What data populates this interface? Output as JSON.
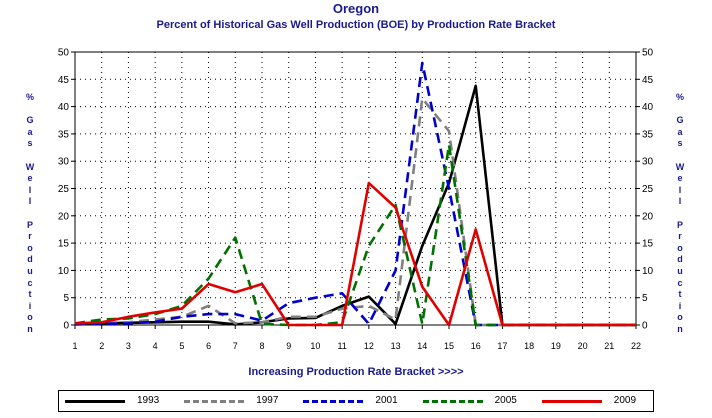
{
  "title": "Oregon",
  "subtitle": "Percent of Historical Gas Well Production (BOE) by Production Rate Bracket",
  "ylabel_left": "% Gas Well Production",
  "ylabel_right": "% Gas Well Production",
  "xlabel": "Increasing Production Rate Bracket >>>>",
  "colors": {
    "text": "#1a1a8c",
    "grid": "#000000"
  },
  "chart_data": {
    "type": "line",
    "title": "Oregon",
    "subtitle": "Percent of Historical Gas Well Production (BOE) by Production Rate Bracket",
    "xlabel": "Increasing Production Rate Bracket >>>>",
    "ylabel": "% Gas Well Production",
    "x": [
      1,
      2,
      3,
      4,
      5,
      6,
      7,
      8,
      9,
      10,
      11,
      12,
      13,
      14,
      15,
      16,
      17,
      18,
      19,
      20,
      21,
      22
    ],
    "xlim": [
      1,
      22
    ],
    "ylim": [
      0,
      50
    ],
    "yticks": [
      0,
      5,
      10,
      15,
      20,
      25,
      30,
      35,
      40,
      45,
      50
    ],
    "grid": true,
    "legend_position": "bottom",
    "series": [
      {
        "name": "1993",
        "color": "#000000",
        "dash": "solid",
        "values": [
          0.2,
          0.3,
          0.4,
          0.5,
          0.6,
          0.6,
          0.1,
          0.5,
          1.2,
          1.3,
          3.5,
          5.2,
          0.2,
          14.5,
          26.0,
          43.8,
          0,
          0,
          0,
          0,
          0,
          0
        ]
      },
      {
        "name": "1997",
        "color": "#808080",
        "dash": "dashed",
        "values": [
          0.3,
          0.4,
          0.5,
          1.0,
          1.5,
          3.5,
          0.3,
          0.5,
          1.5,
          1.5,
          3.0,
          3.5,
          1.0,
          41.5,
          35.5,
          0,
          0,
          0,
          0,
          0,
          0,
          0
        ]
      },
      {
        "name": "2001",
        "color": "#0000cc",
        "dash": "dashed",
        "values": [
          0.1,
          0.2,
          0.3,
          0.6,
          1.5,
          2.0,
          2.0,
          0.8,
          4.0,
          5.0,
          5.8,
          0.2,
          10.0,
          48.0,
          25.0,
          0,
          0,
          0,
          0,
          0,
          0,
          0
        ]
      },
      {
        "name": "2005",
        "color": "#007000",
        "dash": "dashed",
        "values": [
          0.3,
          1.0,
          1.2,
          2.0,
          3.5,
          8.5,
          16.0,
          0.2,
          0,
          0,
          0.5,
          14.5,
          22.0,
          0.2,
          33.0,
          0,
          0,
          0,
          0,
          0,
          0,
          0
        ]
      },
      {
        "name": "2009",
        "color": "#e00000",
        "dash": "solid",
        "values": [
          0.3,
          0.5,
          1.5,
          2.3,
          3.0,
          7.5,
          6.0,
          7.5,
          0,
          0,
          0,
          26.0,
          21.5,
          7.0,
          0,
          17.5,
          0,
          0,
          0,
          0,
          0,
          0
        ]
      }
    ]
  }
}
